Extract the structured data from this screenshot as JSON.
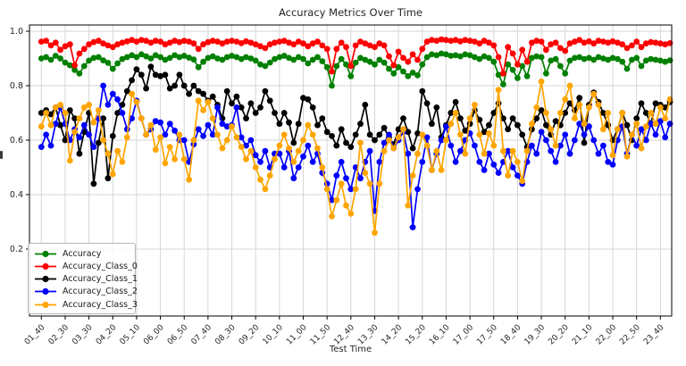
{
  "chart_data": {
    "type": "line",
    "title": "Accuracy Metrics Over Time",
    "xlabel": "Test Time",
    "ylabel": "",
    "grid": true,
    "legend_position": "lower-left",
    "ylim": [
      -0.046,
      1.023
    ],
    "ytick_labels": [
      "0.2",
      "0.4",
      "0.6",
      "0.8",
      "1.0"
    ],
    "x_tick_labels": [
      "01_40",
      "02_30",
      "03_30",
      "04_20",
      "05_10",
      "06_00",
      "06_50",
      "07_40",
      "08_30",
      "09_20",
      "10_10",
      "11_00",
      "11_50",
      "12_40",
      "13_30",
      "14_20",
      "15_20",
      "16_10",
      "17_00",
      "17_50",
      "18_40",
      "19_30",
      "20_20",
      "21_10",
      "22_00",
      "22_50",
      "23_40"
    ],
    "points_per_tick": 5,
    "marker": "o",
    "series": [
      {
        "name": "Accuracy",
        "color": "#008000",
        "values": [
          0.9,
          0.905,
          0.895,
          0.91,
          0.9,
          0.885,
          0.875,
          0.858,
          0.845,
          0.872,
          0.892,
          0.902,
          0.905,
          0.893,
          0.884,
          0.862,
          0.882,
          0.898,
          0.905,
          0.912,
          0.905,
          0.915,
          0.908,
          0.9,
          0.912,
          0.905,
          0.895,
          0.902,
          0.912,
          0.905,
          0.91,
          0.903,
          0.896,
          0.868,
          0.888,
          0.902,
          0.908,
          0.9,
          0.895,
          0.905,
          0.91,
          0.905,
          0.898,
          0.905,
          0.9,
          0.892,
          0.878,
          0.872,
          0.885,
          0.898,
          0.905,
          0.91,
          0.902,
          0.895,
          0.905,
          0.898,
          0.882,
          0.895,
          0.905,
          0.89,
          0.868,
          0.8,
          0.872,
          0.898,
          0.878,
          0.835,
          0.885,
          0.902,
          0.895,
          0.888,
          0.878,
          0.895,
          0.885,
          0.862,
          0.845,
          0.868,
          0.852,
          0.835,
          0.848,
          0.838,
          0.878,
          0.905,
          0.915,
          0.912,
          0.918,
          0.915,
          0.91,
          0.912,
          0.908,
          0.915,
          0.912,
          0.905,
          0.898,
          0.908,
          0.902,
          0.888,
          0.84,
          0.805,
          0.878,
          0.858,
          0.828,
          0.872,
          0.835,
          0.902,
          0.908,
          0.905,
          0.845,
          0.892,
          0.898,
          0.872,
          0.845,
          0.892,
          0.902,
          0.905,
          0.898,
          0.902,
          0.895,
          0.905,
          0.9,
          0.895,
          0.902,
          0.898,
          0.888,
          0.862,
          0.895,
          0.902,
          0.872,
          0.892,
          0.898,
          0.895,
          0.892,
          0.888,
          0.893
        ]
      },
      {
        "name": "Accuracy_Class_0",
        "color": "#ff0000",
        "values": [
          0.962,
          0.965,
          0.948,
          0.958,
          0.932,
          0.945,
          0.952,
          0.875,
          0.918,
          0.935,
          0.952,
          0.96,
          0.965,
          0.955,
          0.948,
          0.942,
          0.952,
          0.958,
          0.963,
          0.968,
          0.962,
          0.968,
          0.965,
          0.958,
          0.965,
          0.962,
          0.952,
          0.958,
          0.965,
          0.96,
          0.965,
          0.962,
          0.955,
          0.935,
          0.952,
          0.96,
          0.965,
          0.962,
          0.955,
          0.962,
          0.965,
          0.962,
          0.956,
          0.963,
          0.958,
          0.952,
          0.945,
          0.938,
          0.952,
          0.958,
          0.962,
          0.965,
          0.958,
          0.952,
          0.962,
          0.955,
          0.945,
          0.955,
          0.962,
          0.948,
          0.935,
          0.852,
          0.935,
          0.958,
          0.942,
          0.872,
          0.948,
          0.962,
          0.955,
          0.948,
          0.942,
          0.955,
          0.948,
          0.908,
          0.875,
          0.925,
          0.902,
          0.888,
          0.915,
          0.895,
          0.935,
          0.962,
          0.968,
          0.965,
          0.97,
          0.968,
          0.965,
          0.968,
          0.963,
          0.968,
          0.965,
          0.962,
          0.955,
          0.965,
          0.958,
          0.948,
          0.905,
          0.845,
          0.942,
          0.918,
          0.878,
          0.932,
          0.888,
          0.958,
          0.965,
          0.962,
          0.932,
          0.952,
          0.958,
          0.938,
          0.928,
          0.955,
          0.962,
          0.968,
          0.958,
          0.963,
          0.955,
          0.965,
          0.962,
          0.958,
          0.963,
          0.958,
          0.952,
          0.938,
          0.948,
          0.962,
          0.942,
          0.955,
          0.96,
          0.958,
          0.955,
          0.952,
          0.956
        ]
      },
      {
        "name": "Accuracy_Class_1",
        "color": "#000000",
        "values": [
          0.7,
          0.71,
          0.695,
          0.72,
          0.655,
          0.6,
          0.71,
          0.68,
          0.55,
          0.63,
          0.7,
          0.44,
          0.59,
          0.68,
          0.46,
          0.615,
          0.7,
          0.73,
          0.78,
          0.82,
          0.86,
          0.84,
          0.79,
          0.87,
          0.84,
          0.835,
          0.84,
          0.79,
          0.8,
          0.84,
          0.8,
          0.77,
          0.8,
          0.78,
          0.77,
          0.745,
          0.76,
          0.73,
          0.68,
          0.78,
          0.735,
          0.76,
          0.72,
          0.68,
          0.735,
          0.7,
          0.72,
          0.78,
          0.745,
          0.7,
          0.66,
          0.7,
          0.665,
          0.59,
          0.66,
          0.755,
          0.75,
          0.72,
          0.655,
          0.68,
          0.63,
          0.615,
          0.58,
          0.64,
          0.59,
          0.575,
          0.62,
          0.66,
          0.73,
          0.62,
          0.6,
          0.62,
          0.645,
          0.61,
          0.585,
          0.64,
          0.68,
          0.63,
          0.57,
          0.625,
          0.78,
          0.735,
          0.66,
          0.72,
          0.61,
          0.655,
          0.7,
          0.74,
          0.68,
          0.635,
          0.66,
          0.71,
          0.675,
          0.63,
          0.655,
          0.7,
          0.735,
          0.68,
          0.64,
          0.68,
          0.655,
          0.62,
          0.575,
          0.64,
          0.68,
          0.71,
          0.655,
          0.62,
          0.67,
          0.655,
          0.7,
          0.735,
          0.71,
          0.755,
          0.59,
          0.73,
          0.775,
          0.74,
          0.7,
          0.655,
          0.6,
          0.64,
          0.7,
          0.655,
          0.6,
          0.68,
          0.735,
          0.7,
          0.66,
          0.735,
          0.73,
          0.72,
          0.74
        ]
      },
      {
        "name": "Accuracy_Class_2",
        "color": "#0000ff",
        "values": [
          0.575,
          0.62,
          0.58,
          0.66,
          0.72,
          0.66,
          0.6,
          0.64,
          0.61,
          0.655,
          0.62,
          0.575,
          0.68,
          0.8,
          0.73,
          0.77,
          0.75,
          0.7,
          0.64,
          0.68,
          0.745,
          0.68,
          0.62,
          0.64,
          0.67,
          0.665,
          0.62,
          0.66,
          0.635,
          0.6,
          0.6,
          0.52,
          0.585,
          0.64,
          0.615,
          0.655,
          0.62,
          0.72,
          0.66,
          0.65,
          0.655,
          0.72,
          0.61,
          0.58,
          0.6,
          0.545,
          0.52,
          0.56,
          0.5,
          0.55,
          0.55,
          0.5,
          0.56,
          0.46,
          0.5,
          0.54,
          0.58,
          0.52,
          0.55,
          0.48,
          0.44,
          0.38,
          0.47,
          0.52,
          0.46,
          0.42,
          0.5,
          0.46,
          0.52,
          0.56,
          0.34,
          0.52,
          0.59,
          0.62,
          0.57,
          0.6,
          0.63,
          0.55,
          0.28,
          0.42,
          0.52,
          0.61,
          0.49,
          0.55,
          0.6,
          0.65,
          0.58,
          0.52,
          0.56,
          0.6,
          0.625,
          0.58,
          0.52,
          0.49,
          0.55,
          0.51,
          0.48,
          0.52,
          0.56,
          0.5,
          0.47,
          0.44,
          0.52,
          0.58,
          0.55,
          0.63,
          0.6,
          0.56,
          0.52,
          0.58,
          0.62,
          0.55,
          0.6,
          0.66,
          0.62,
          0.65,
          0.6,
          0.55,
          0.58,
          0.52,
          0.51,
          0.6,
          0.65,
          0.55,
          0.62,
          0.58,
          0.64,
          0.6,
          0.66,
          0.62,
          0.67,
          0.61,
          0.66
        ]
      },
      {
        "name": "Accuracy_Class_3",
        "color": "#ffa500",
        "values": [
          0.65,
          0.7,
          0.655,
          0.72,
          0.73,
          0.7,
          0.525,
          0.63,
          0.68,
          0.72,
          0.73,
          0.665,
          0.71,
          0.6,
          0.55,
          0.475,
          0.56,
          0.52,
          0.61,
          0.77,
          0.74,
          0.68,
          0.62,
          0.655,
          0.565,
          0.61,
          0.515,
          0.575,
          0.53,
          0.62,
          0.53,
          0.455,
          0.6,
          0.745,
          0.71,
          0.74,
          0.68,
          0.62,
          0.57,
          0.6,
          0.65,
          0.61,
          0.575,
          0.53,
          0.56,
          0.5,
          0.455,
          0.42,
          0.47,
          0.53,
          0.58,
          0.62,
          0.57,
          0.52,
          0.56,
          0.6,
          0.655,
          0.62,
          0.57,
          0.5,
          0.42,
          0.32,
          0.38,
          0.44,
          0.36,
          0.33,
          0.42,
          0.59,
          0.48,
          0.44,
          0.26,
          0.44,
          0.56,
          0.6,
          0.57,
          0.61,
          0.64,
          0.36,
          0.47,
          0.55,
          0.62,
          0.58,
          0.49,
          0.56,
          0.49,
          0.6,
          0.66,
          0.7,
          0.62,
          0.55,
          0.68,
          0.73,
          0.62,
          0.55,
          0.625,
          0.58,
          0.785,
          0.56,
          0.47,
          0.56,
          0.52,
          0.45,
          0.56,
          0.66,
          0.72,
          0.815,
          0.7,
          0.64,
          0.58,
          0.7,
          0.75,
          0.8,
          0.68,
          0.73,
          0.66,
          0.72,
          0.77,
          0.73,
          0.64,
          0.7,
          0.545,
          0.64,
          0.7,
          0.54,
          0.62,
          0.66,
          0.57,
          0.65,
          0.7,
          0.66,
          0.72,
          0.68,
          0.75
        ]
      }
    ],
    "style": {
      "grid_color": "#d6d6d6",
      "frame_color": "#000000",
      "tick_text_color": "#262626"
    }
  }
}
